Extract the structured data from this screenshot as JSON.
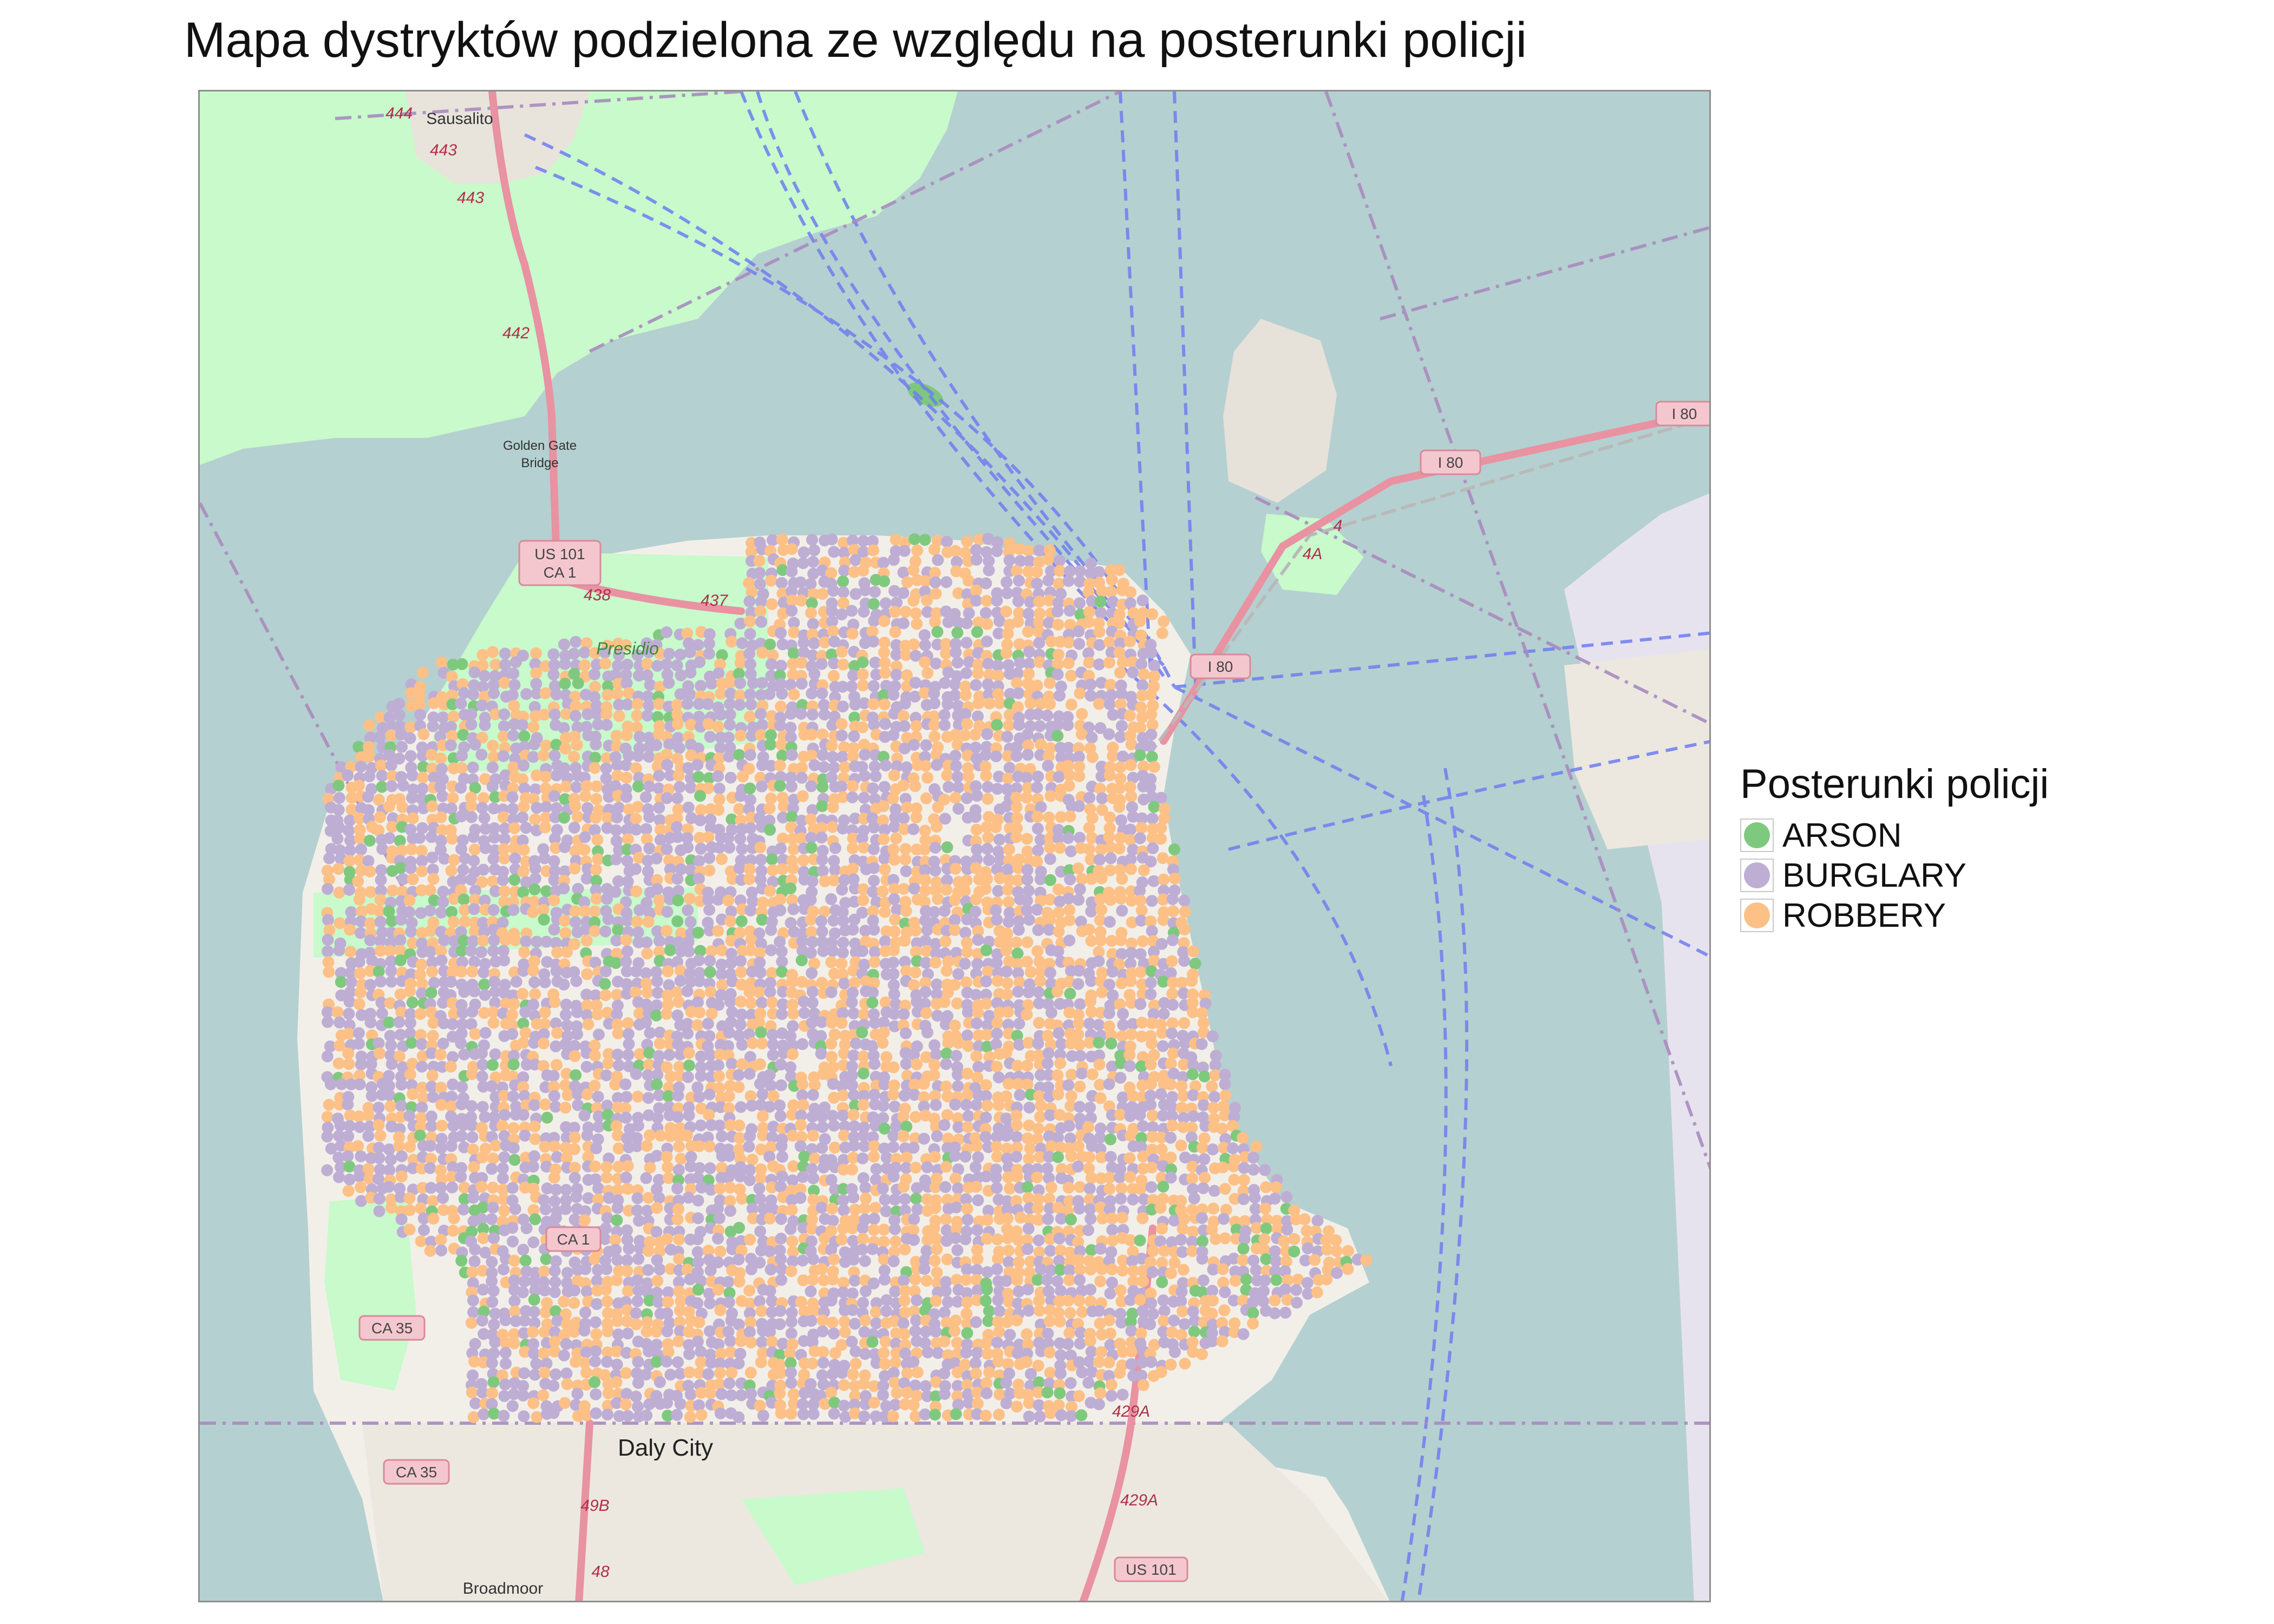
{
  "title": "Mapa dystryktów podzielona ze względu na posterunki policji",
  "colors": {
    "water": "#b5d0d0",
    "land": "#f2efe9",
    "park": "#c8facc",
    "wood": "#add19e",
    "highway": "#e892a2",
    "ferry": "#6f7ef0",
    "boundary": "#a88bbf",
    "arson": "#7fc97f",
    "burglary": "#beaed4",
    "robbery": "#fdc086"
  },
  "legend": {
    "title": "Posterunki policji",
    "items": [
      {
        "label": "ARSON",
        "color": "#7fc97f"
      },
      {
        "label": "BURGLARY",
        "color": "#beaed4"
      },
      {
        "label": "ROBBERY",
        "color": "#fdc086"
      }
    ]
  },
  "map": {
    "places": {
      "sausalito": "Sausalito",
      "golden_gate": "Golden Gate",
      "bridge": "Bridge",
      "presidio": "Presidio",
      "daly_city": "Daly City",
      "broadmoor": "Broadmoor"
    },
    "road_shields": {
      "us101_a": "US 101",
      "ca1_a": "CA 1",
      "i80_a": "I 80",
      "i80_b": "I 80",
      "i80_c": "I 80",
      "ca1_b": "CA 1",
      "ca35_a": "CA 35",
      "ca35_b": "CA 35",
      "us101_b": "US 101"
    },
    "exits": {
      "e444": "444",
      "e443a": "443",
      "e443b": "443",
      "e442": "442",
      "e438": "438",
      "e437": "437",
      "e4a": "4A",
      "e4": "4",
      "e49b": "49B",
      "e48": "48",
      "e429a_a": "429A",
      "e429a_b": "429A"
    }
  }
}
